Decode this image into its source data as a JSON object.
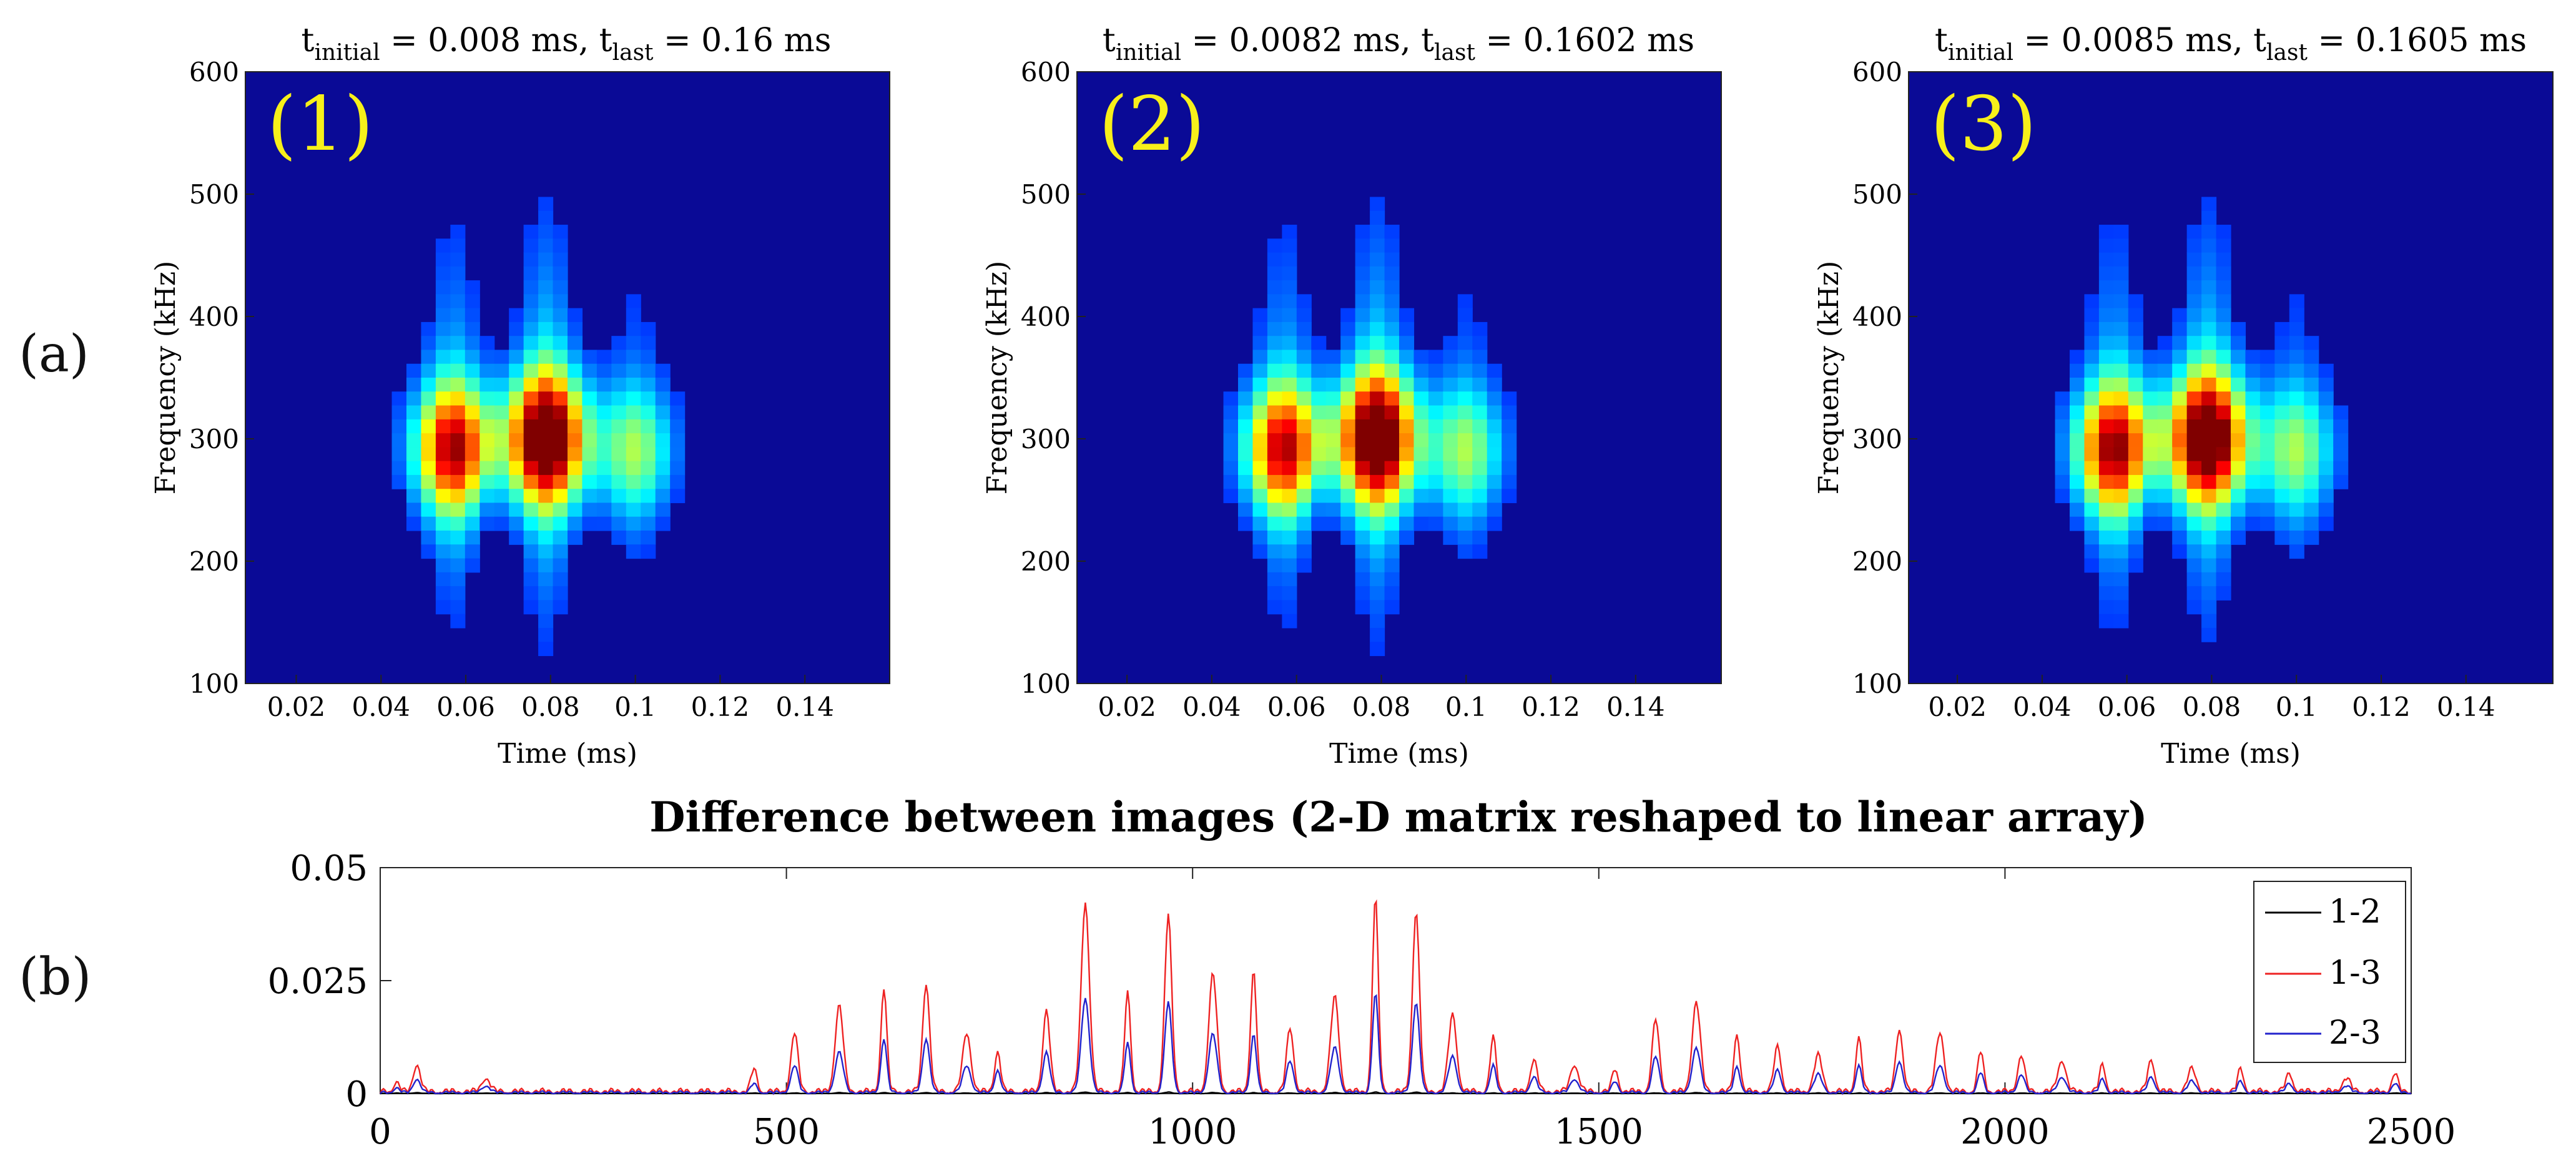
{
  "panel_labels": [
    "(a)",
    "(b)"
  ],
  "chart_data": [
    {
      "type": "heatmap",
      "panel": "(1)",
      "title": {
        "base": "t",
        "sub1": "initial",
        "mid": " = 0.008 ms, t",
        "sub2": "last",
        "end": " = 0.16 ms"
      },
      "xlabel": "Time (ms)",
      "ylabel": "Frequency (kHz)",
      "xlim": [
        0.008,
        0.16
      ],
      "ylim": [
        100,
        600
      ],
      "xticks": [
        0.02,
        0.04,
        0.06,
        0.08,
        0.1,
        0.12,
        0.14
      ],
      "xtick_labels": [
        "0.02",
        "0.04",
        "0.06",
        "0.08",
        "0.1",
        "0.12",
        "0.14"
      ],
      "yticks": [
        100,
        200,
        300,
        400,
        500,
        600
      ],
      "ytick_labels": [
        "100",
        "200",
        "300",
        "400",
        "500",
        "600"
      ],
      "colormap": "jet",
      "peaks": [
        {
          "t": 0.057,
          "f": 292,
          "intensity": 0.78
        },
        {
          "t": 0.079,
          "f": 300,
          "intensity": 1.0
        },
        {
          "t": 0.1,
          "f": 290,
          "intensity": 0.38
        }
      ]
    },
    {
      "type": "heatmap",
      "panel": "(2)",
      "title": {
        "base": "t",
        "sub1": "initial",
        "mid": " = 0.0082 ms, t",
        "sub2": "last",
        "end": " = 0.1602 ms"
      },
      "xlabel": "Time (ms)",
      "ylabel": "Frequency (kHz)",
      "xlim": [
        0.0082,
        0.1602
      ],
      "ylim": [
        100,
        600
      ],
      "xticks": [
        0.02,
        0.04,
        0.06,
        0.08,
        0.1,
        0.12,
        0.14
      ],
      "xtick_labels": [
        "0.02",
        "0.04",
        "0.06",
        "0.08",
        "0.1",
        "0.12",
        "0.14"
      ],
      "yticks": [
        100,
        200,
        300,
        400,
        500,
        600
      ],
      "ytick_labels": [
        "100",
        "200",
        "300",
        "400",
        "500",
        "600"
      ],
      "colormap": "jet",
      "peaks": [
        {
          "t": 0.057,
          "f": 292,
          "intensity": 0.76
        },
        {
          "t": 0.079,
          "f": 300,
          "intensity": 1.0
        },
        {
          "t": 0.1,
          "f": 290,
          "intensity": 0.38
        }
      ]
    },
    {
      "type": "heatmap",
      "panel": "(3)",
      "title": {
        "base": "t",
        "sub1": "initial",
        "mid": " = 0.0085 ms, t",
        "sub2": "last",
        "end": " = 0.1605 ms"
      },
      "xlabel": "Time (ms)",
      "ylabel": "Frequency (kHz)",
      "xlim": [
        0.0085,
        0.1605
      ],
      "ylim": [
        100,
        600
      ],
      "xticks": [
        0.02,
        0.04,
        0.06,
        0.08,
        0.1,
        0.12,
        0.14
      ],
      "xtick_labels": [
        "0.02",
        "0.04",
        "0.06",
        "0.08",
        "0.1",
        "0.12",
        "0.14"
      ],
      "yticks": [
        100,
        200,
        300,
        400,
        500,
        600
      ],
      "ytick_labels": [
        "100",
        "200",
        "300",
        "400",
        "500",
        "600"
      ],
      "colormap": "jet",
      "peaks": [
        {
          "t": 0.057,
          "f": 292,
          "intensity": 0.8
        },
        {
          "t": 0.079,
          "f": 300,
          "intensity": 0.98
        },
        {
          "t": 0.1,
          "f": 290,
          "intensity": 0.38
        }
      ]
    },
    {
      "type": "line",
      "title": "Difference between images (2-D matrix reshaped to linear array)",
      "xlabel": "",
      "ylabel": "",
      "xlim": [
        0,
        2500
      ],
      "ylim": [
        0,
        0.05
      ],
      "xticks": [
        0,
        500,
        1000,
        1500,
        2000,
        2500
      ],
      "xtick_labels": [
        "0",
        "500",
        "1000",
        "1500",
        "2000",
        "2500"
      ],
      "yticks": [
        0,
        0.025,
        0.05
      ],
      "ytick_labels": [
        "0",
        "0.025",
        "0.05"
      ],
      "legend_position": "top-right",
      "peaks_x": [
        20,
        45,
        130,
        460,
        510,
        565,
        620,
        672,
        722,
        760,
        820,
        868,
        920,
        970,
        1025,
        1075,
        1120,
        1175,
        1225,
        1275,
        1320,
        1370,
        1420,
        1470,
        1520,
        1570,
        1620,
        1670,
        1720,
        1770,
        1820,
        1870,
        1920,
        1970,
        2020,
        2070,
        2120,
        2180,
        2230,
        2290,
        2350,
        2420,
        2480
      ],
      "series": [
        {
          "name": "1-2",
          "color": "#000000",
          "peaks": [
            0.0001,
            0.0002,
            0.0001,
            0.0001,
            0.0001,
            0.0002,
            0.0002,
            0.0002,
            0.0001,
            0.0001,
            0.0002,
            0.0003,
            0.0002,
            0.0003,
            0.0002,
            0.0002,
            0.0001,
            0.0002,
            0.0003,
            0.0003,
            0.0001,
            0.0001,
            0.0001,
            0.0001,
            0.0001,
            0.0001,
            0.0002,
            0.0001,
            0.0001,
            0.0001,
            0.0001,
            0.0001,
            0.0001,
            0.0001,
            0.0001,
            0.0001,
            0.0001,
            0.0001,
            0.0001,
            0.0001,
            0.0001,
            0.0001,
            0.0001
          ]
        },
        {
          "name": "1-3",
          "color": "#ee2222",
          "peaks": [
            0.002,
            0.006,
            0.003,
            0.005,
            0.013,
            0.019,
            0.023,
            0.024,
            0.013,
            0.009,
            0.018,
            0.042,
            0.022,
            0.039,
            0.026,
            0.027,
            0.014,
            0.021,
            0.043,
            0.04,
            0.017,
            0.012,
            0.007,
            0.006,
            0.005,
            0.016,
            0.02,
            0.013,
            0.01,
            0.008,
            0.012,
            0.014,
            0.013,
            0.009,
            0.008,
            0.007,
            0.006,
            0.007,
            0.005,
            0.005,
            0.004,
            0.003,
            0.004
          ]
        },
        {
          "name": "2-3",
          "color": "#2222cc",
          "peaks": [
            0.001,
            0.003,
            0.0015,
            0.002,
            0.006,
            0.009,
            0.012,
            0.012,
            0.006,
            0.005,
            0.009,
            0.021,
            0.011,
            0.02,
            0.013,
            0.013,
            0.007,
            0.01,
            0.022,
            0.02,
            0.008,
            0.006,
            0.0035,
            0.003,
            0.0025,
            0.008,
            0.01,
            0.006,
            0.005,
            0.004,
            0.006,
            0.007,
            0.006,
            0.0045,
            0.004,
            0.0035,
            0.003,
            0.0035,
            0.0025,
            0.0025,
            0.002,
            0.0015,
            0.002
          ]
        }
      ]
    }
  ]
}
